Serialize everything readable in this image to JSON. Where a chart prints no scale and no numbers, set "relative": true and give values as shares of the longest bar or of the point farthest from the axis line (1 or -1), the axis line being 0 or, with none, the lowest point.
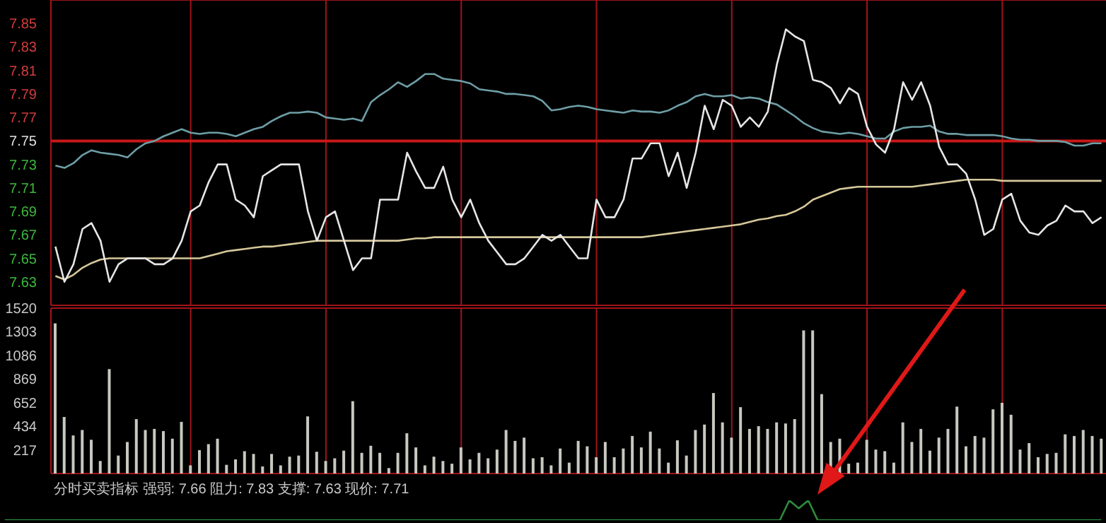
{
  "chart_data": [
    {
      "type": "line",
      "tick_labels": "y",
      "grid": true,
      "ylim": [
        7.61,
        7.87
      ],
      "yticks": [
        7.63,
        7.65,
        7.67,
        7.69,
        7.71,
        7.73,
        7.75,
        7.77,
        7.79,
        7.81,
        7.83,
        7.85
      ],
      "ref_lines": [
        {
          "axis": "y",
          "value": 7.75,
          "color": "#c81818"
        }
      ],
      "categories": [
        null,
        null,
        null,
        null,
        null,
        null,
        null,
        null,
        null,
        null,
        null,
        null,
        null,
        null,
        null,
        null,
        null,
        null,
        null,
        null,
        null,
        null,
        null,
        null,
        null,
        null,
        null,
        null,
        null,
        null,
        null,
        null,
        null,
        null,
        null,
        null,
        null,
        null,
        null,
        null,
        null,
        null,
        null,
        null,
        null,
        null,
        null,
        null,
        null,
        null,
        null,
        null,
        null,
        null,
        null,
        null,
        null,
        null,
        null,
        null,
        null,
        null,
        null,
        null,
        null,
        null,
        null,
        null,
        null,
        null,
        null,
        null,
        null,
        null,
        null,
        null,
        null,
        null,
        null,
        null,
        null,
        null,
        null,
        null,
        null,
        null,
        null,
        null,
        null,
        null,
        null,
        null,
        null,
        null,
        null,
        null,
        null,
        null,
        null,
        null,
        null,
        null,
        null,
        null,
        null,
        null,
        null,
        null,
        null,
        null,
        null,
        null,
        null,
        null,
        null,
        null,
        null
      ],
      "series": [
        {
          "color": "#6e9ea6",
          "values": [
            7.729,
            7.727,
            7.731,
            7.738,
            7.742,
            7.74,
            7.739,
            7.738,
            7.736,
            7.743,
            7.748,
            7.75,
            7.754,
            7.757,
            7.76,
            7.757,
            7.756,
            7.757,
            7.757,
            7.756,
            7.754,
            7.757,
            7.76,
            7.762,
            7.767,
            7.771,
            7.774,
            7.774,
            7.775,
            7.774,
            7.77,
            7.769,
            7.768,
            7.769,
            7.767,
            7.783,
            7.789,
            7.794,
            7.8,
            7.796,
            7.801,
            7.807,
            7.807,
            7.803,
            7.802,
            7.801,
            7.799,
            7.794,
            7.793,
            7.792,
            7.79,
            7.79,
            7.789,
            7.788,
            7.784,
            7.776,
            7.777,
            7.779,
            7.78,
            7.779,
            7.777,
            7.776,
            7.775,
            7.774,
            7.776,
            7.775,
            7.775,
            7.774,
            7.776,
            7.78,
            7.783,
            7.788,
            7.79,
            7.788,
            7.788,
            7.789,
            7.786,
            7.787,
            7.786,
            7.783,
            7.781,
            7.776,
            7.771,
            7.765,
            7.761,
            7.758,
            7.757,
            7.756,
            7.757,
            7.756,
            7.754,
            7.752,
            7.752,
            7.758,
            7.761,
            7.762,
            7.762,
            7.763,
            7.758,
            7.756,
            7.756,
            7.755,
            7.755,
            7.755,
            7.755,
            7.754,
            7.752,
            7.751,
            7.751,
            7.75,
            7.75,
            7.75,
            7.749,
            7.746,
            7.746,
            7.748,
            7.748
          ]
        },
        {
          "color": "#d6c89a",
          "values": [
            7.635,
            7.632,
            7.636,
            7.642,
            7.646,
            7.649,
            7.65,
            7.65,
            7.65,
            7.65,
            7.65,
            7.65,
            7.65,
            7.65,
            7.65,
            7.65,
            7.65,
            7.652,
            7.654,
            7.656,
            7.657,
            7.658,
            7.659,
            7.66,
            7.66,
            7.661,
            7.662,
            7.663,
            7.664,
            7.665,
            7.665,
            7.665,
            7.665,
            7.665,
            7.665,
            7.665,
            7.665,
            7.665,
            7.665,
            7.666,
            7.667,
            7.667,
            7.668,
            7.668,
            7.668,
            7.668,
            7.668,
            7.668,
            7.668,
            7.668,
            7.668,
            7.668,
            7.668,
            7.668,
            7.668,
            7.668,
            7.668,
            7.668,
            7.668,
            7.668,
            7.668,
            7.668,
            7.668,
            7.668,
            7.668,
            7.668,
            7.669,
            7.67,
            7.671,
            7.672,
            7.673,
            7.674,
            7.675,
            7.676,
            7.677,
            7.678,
            7.679,
            7.681,
            7.683,
            7.684,
            7.686,
            7.687,
            7.69,
            7.694,
            7.7,
            7.703,
            7.706,
            7.709,
            7.71,
            7.711,
            7.711,
            7.711,
            7.711,
            7.711,
            7.711,
            7.711,
            7.712,
            7.713,
            7.714,
            7.715,
            7.716,
            7.717,
            7.717,
            7.717,
            7.717,
            7.716,
            7.716,
            7.716,
            7.716,
            7.716,
            7.716,
            7.716,
            7.716,
            7.716,
            7.716,
            7.716,
            7.716
          ]
        },
        {
          "color": "#e6e6e6",
          "values": [
            7.66,
            7.63,
            7.645,
            7.675,
            7.68,
            7.665,
            7.63,
            7.645,
            7.65,
            7.65,
            7.65,
            7.645,
            7.645,
            7.65,
            7.665,
            7.69,
            7.695,
            7.715,
            7.73,
            7.73,
            7.7,
            7.695,
            7.685,
            7.72,
            7.725,
            7.73,
            7.73,
            7.73,
            7.69,
            7.665,
            7.685,
            7.69,
            7.665,
            7.64,
            7.65,
            7.65,
            7.7,
            7.7,
            7.7,
            7.74,
            7.724,
            7.71,
            7.71,
            7.728,
            7.7,
            7.685,
            7.7,
            7.68,
            7.665,
            7.655,
            7.645,
            7.645,
            7.65,
            7.66,
            7.67,
            7.665,
            7.67,
            7.66,
            7.65,
            7.65,
            7.7,
            7.685,
            7.685,
            7.7,
            7.735,
            7.735,
            7.748,
            7.748,
            7.72,
            7.74,
            7.71,
            7.74,
            7.78,
            7.76,
            7.785,
            7.78,
            7.762,
            7.77,
            7.762,
            7.775,
            7.815,
            7.845,
            7.839,
            7.835,
            7.802,
            7.8,
            7.795,
            7.782,
            7.795,
            7.79,
            7.762,
            7.747,
            7.74,
            7.76,
            7.8,
            7.785,
            7.8,
            7.78,
            7.745,
            7.73,
            7.73,
            7.722,
            7.7,
            7.67,
            7.675,
            7.7,
            7.705,
            7.682,
            7.672,
            7.67,
            7.678,
            7.682,
            7.695,
            7.69,
            7.69,
            7.68,
            7.685
          ]
        }
      ]
    },
    {
      "type": "bar",
      "tick_labels": "y",
      "grid": true,
      "ylim": [
        0,
        1520
      ],
      "yticks": [
        217,
        434,
        652,
        869,
        1086,
        1303,
        1520
      ],
      "color": "#c8c8c0",
      "categories": [
        null,
        null,
        null,
        null,
        null,
        null,
        null,
        null,
        null,
        null,
        null,
        null,
        null,
        null,
        null,
        null,
        null,
        null,
        null,
        null,
        null,
        null,
        null,
        null,
        null,
        null,
        null,
        null,
        null,
        null,
        null,
        null,
        null,
        null,
        null,
        null,
        null,
        null,
        null,
        null,
        null,
        null,
        null,
        null,
        null,
        null,
        null,
        null,
        null,
        null,
        null,
        null,
        null,
        null,
        null,
        null,
        null,
        null,
        null,
        null,
        null,
        null,
        null,
        null,
        null,
        null,
        null,
        null,
        null,
        null,
        null,
        null,
        null,
        null,
        null,
        null,
        null,
        null,
        null,
        null,
        null,
        null,
        null,
        null,
        null,
        null,
        null,
        null,
        null,
        null,
        null,
        null,
        null,
        null,
        null,
        null,
        null,
        null,
        null,
        null,
        null,
        null,
        null,
        null,
        null,
        null,
        null,
        null,
        null,
        null,
        null,
        null,
        null,
        null,
        null,
        null,
        null
      ],
      "values": [
        1380,
        520,
        350,
        400,
        310,
        115,
        960,
        165,
        290,
        500,
        400,
        410,
        390,
        320,
        475,
        75,
        215,
        270,
        320,
        80,
        130,
        205,
        180,
        65,
        180,
        75,
        155,
        165,
        525,
        200,
        115,
        140,
        210,
        665,
        190,
        255,
        190,
        50,
        190,
        370,
        240,
        75,
        155,
        115,
        90,
        240,
        130,
        190,
        140,
        220,
        400,
        300,
        330,
        140,
        150,
        75,
        230,
        100,
        300,
        250,
        150,
        290,
        150,
        230,
        345,
        240,
        385,
        230,
        100,
        305,
        165,
        400,
        450,
        740,
        470,
        330,
        610,
        410,
        435,
        410,
        470,
        460,
        500,
        1315,
        1315,
        730,
        290,
        320,
        90,
        100,
        310,
        220,
        205,
        100,
        470,
        290,
        410,
        210,
        330,
        410,
        615,
        250,
        345,
        330,
        590,
        650,
        540,
        220,
        280,
        150,
        180,
        190,
        360,
        345,
        400,
        345,
        320
      ]
    },
    {
      "type": "line",
      "relative": true,
      "tick_labels": false,
      "title": "分时买卖指标 强弱: 7.66 阻力: 7.83 支撑: 7.63 现价: 7.71",
      "categories": [
        null,
        null,
        null,
        null,
        null,
        null,
        null,
        null,
        null,
        null,
        null,
        null,
        null,
        null,
        null,
        null,
        null,
        null,
        null,
        null,
        null,
        null,
        null,
        null,
        null,
        null,
        null,
        null,
        null,
        null,
        null,
        null,
        null,
        null,
        null,
        null,
        null,
        null,
        null,
        null,
        null,
        null,
        null,
        null,
        null,
        null,
        null,
        null,
        null,
        null,
        null,
        null,
        null,
        null,
        null,
        null,
        null,
        null,
        null,
        null,
        null,
        null,
        null,
        null,
        null,
        null,
        null,
        null,
        null,
        null,
        null,
        null,
        null,
        null,
        null,
        null,
        null,
        null,
        null,
        null,
        null,
        null,
        null,
        null,
        null,
        null,
        null,
        null,
        null,
        null,
        null,
        null,
        null,
        null,
        null,
        null,
        null,
        null,
        null,
        null,
        null,
        null,
        null,
        null,
        null,
        null,
        null,
        null,
        null,
        null,
        null,
        null,
        null,
        null,
        null,
        null,
        null
      ],
      "series": [
        {
          "color": "#2e8a3c",
          "values": [
            0,
            0,
            0,
            0,
            0,
            0,
            0,
            0,
            0,
            0,
            0,
            0,
            0,
            0,
            0,
            0,
            0,
            0,
            0,
            0,
            0,
            0,
            0,
            0,
            0,
            0,
            0,
            0,
            0,
            0,
            0,
            0,
            0,
            0,
            0,
            0,
            0,
            0,
            0,
            0,
            0,
            0,
            0,
            0,
            0,
            0,
            0,
            0,
            0,
            0,
            0,
            0,
            0,
            0,
            0,
            0,
            0,
            0,
            0,
            0,
            0,
            0,
            0,
            0,
            0,
            0,
            0,
            0,
            0,
            0,
            0,
            0,
            0,
            0,
            0,
            0,
            0,
            0,
            0,
            0,
            0,
            0,
            0,
            1,
            0.6,
            1,
            0,
            0,
            0,
            0,
            0,
            0,
            0,
            0,
            0,
            0,
            0,
            0,
            0,
            0,
            0,
            0,
            0,
            0,
            0,
            0,
            0,
            0,
            0,
            0,
            0,
            0,
            0,
            0,
            0,
            0,
            0
          ]
        }
      ]
    }
  ]
}
